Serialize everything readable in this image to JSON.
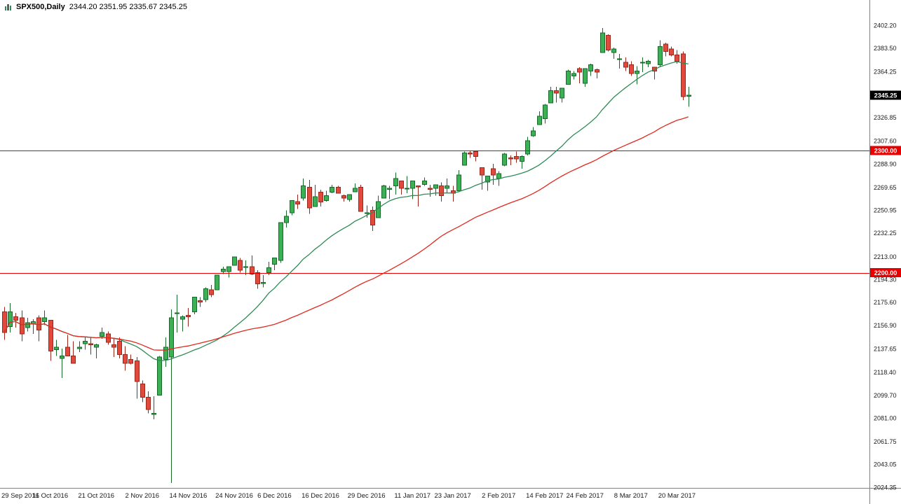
{
  "titlebar": {
    "symbol": "SPX500,Daily",
    "ohlc": "2344.20 2351.95 2335.67 2345.25"
  },
  "chart_data": {
    "type": "candlestick",
    "title": "SPX500,Daily",
    "symbol": "SPX500",
    "timeframe": "Daily",
    "current_bar": {
      "open": 2344.2,
      "high": 2351.95,
      "low": 2335.67,
      "close": 2345.25
    },
    "current_price_label": "2345.25",
    "ylim": [
      2024,
      2423
    ],
    "grid": "off",
    "legend": "none",
    "y_ticks": [
      "2402.20",
      "2383.50",
      "2364.25",
      "2326.85",
      "2307.60",
      "2288.90",
      "2269.65",
      "2250.95",
      "2232.25",
      "2213.00",
      "2194.30",
      "2175.60",
      "2156.90",
      "2137.65",
      "2118.40",
      "2099.70",
      "2081.00",
      "2061.75",
      "2043.05",
      "2024.35"
    ],
    "x_labels": [
      {
        "label": "29 Sep 2016",
        "index": 0
      },
      {
        "label": "11 Oct 2016",
        "index": 8
      },
      {
        "label": "21 Oct 2016",
        "index": 16
      },
      {
        "label": "2 Nov 2016",
        "index": 24
      },
      {
        "label": "14 Nov 2016",
        "index": 32
      },
      {
        "label": "24 Nov 2016",
        "index": 40
      },
      {
        "label": "6 Dec 2016",
        "index": 47
      },
      {
        "label": "16 Dec 2016",
        "index": 55
      },
      {
        "label": "29 Dec 2016",
        "index": 63
      },
      {
        "label": "11 Jan 2017",
        "index": 71
      },
      {
        "label": "23 Jan 2017",
        "index": 78
      },
      {
        "label": "2 Feb 2017",
        "index": 86
      },
      {
        "label": "14 Feb 2017",
        "index": 94
      },
      {
        "label": "24 Feb 2017",
        "index": 101
      },
      {
        "label": "8 Mar 2017",
        "index": 109
      },
      {
        "label": "20 Mar 2017",
        "index": 117
      }
    ],
    "horizontal_lines": [
      {
        "price": 2300.0,
        "label": "2300.00"
      },
      {
        "price": 2200.0,
        "label": "2200.00"
      }
    ],
    "moving_averages": [
      {
        "name": "ma-fast",
        "period": 20,
        "color": "#2e8b57"
      },
      {
        "name": "ma-slow",
        "period": 50,
        "color": "#e02b20"
      }
    ],
    "colors": {
      "background": "#ffffff",
      "bull": "#3cb054",
      "bull_border": "#156a28",
      "bear": "#e0493b",
      "bear_border": "#9c261a",
      "level": "#e80000",
      "current_tag_bg": "#000000",
      "axis_text": "#1a1a1a",
      "separator": "#808080"
    },
    "candles": [
      [
        2168,
        2172,
        2145,
        2151
      ],
      [
        2156,
        2175,
        2151,
        2168
      ],
      [
        2164,
        2167,
        2155,
        2161
      ],
      [
        2163,
        2169,
        2144,
        2150
      ],
      [
        2155,
        2163,
        2152,
        2159
      ],
      [
        2158,
        2162,
        2150,
        2160
      ],
      [
        2163,
        2165,
        2144,
        2153
      ],
      [
        2160,
        2169,
        2157,
        2163
      ],
      [
        2161,
        2161,
        2128,
        2136
      ],
      [
        2137,
        2145,
        2132,
        2139
      ],
      [
        2130,
        2138,
        2114,
        2132
      ],
      [
        2139,
        2149,
        2132,
        2132
      ],
      [
        2132,
        2144,
        2126,
        2126
      ],
      [
        2138,
        2144,
        2135,
        2139
      ],
      [
        2142,
        2148,
        2137,
        2144
      ],
      [
        2142,
        2147,
        2133,
        2141
      ],
      [
        2139,
        2142,
        2130,
        2141
      ],
      [
        2148,
        2155,
        2146,
        2151
      ],
      [
        2150,
        2152,
        2141,
        2143
      ],
      [
        2141,
        2146,
        2131,
        2139
      ],
      [
        2144,
        2147,
        2130,
        2133
      ],
      [
        2133,
        2140,
        2120,
        2126
      ],
      [
        2129,
        2133,
        2125,
        2126
      ],
      [
        2128,
        2131,
        2097,
        2111
      ],
      [
        2109,
        2112,
        2094,
        2098
      ],
      [
        2098,
        2103,
        2085,
        2088
      ],
      [
        2084,
        2099,
        2080,
        2085
      ],
      [
        2100,
        2132,
        2100,
        2131
      ],
      [
        2129,
        2147,
        2123,
        2139
      ],
      [
        2131,
        2170,
        2028,
        2163
      ],
      [
        2167,
        2182,
        2151,
        2167
      ],
      [
        2162,
        2165,
        2152,
        2164
      ],
      [
        2165,
        2171,
        2156,
        2164
      ],
      [
        2168,
        2180,
        2166,
        2180
      ],
      [
        2177,
        2180,
        2172,
        2176
      ],
      [
        2178,
        2188,
        2176,
        2187
      ],
      [
        2186,
        2190,
        2180,
        2182
      ],
      [
        2186,
        2198,
        2186,
        2198
      ],
      [
        2201,
        2205,
        2199,
        2203
      ],
      [
        2201,
        2205,
        2196,
        2205
      ],
      [
        2206,
        2213,
        2206,
        2213
      ],
      [
        2210,
        2212,
        2200,
        2202
      ],
      [
        2205,
        2210,
        2198,
        2205
      ],
      [
        2205,
        2214,
        2198,
        2199
      ],
      [
        2200,
        2202,
        2187,
        2191
      ],
      [
        2191,
        2198,
        2188,
        2192
      ],
      [
        2200,
        2209,
        2198,
        2204
      ],
      [
        2207,
        2212,
        2202,
        2212
      ],
      [
        2210,
        2241,
        2208,
        2241
      ],
      [
        2241,
        2251,
        2237,
        2246
      ],
      [
        2249,
        2259,
        2247,
        2259
      ],
      [
        2258,
        2264,
        2252,
        2256
      ],
      [
        2261,
        2277,
        2259,
        2271
      ],
      [
        2270,
        2276,
        2248,
        2253
      ],
      [
        2254,
        2272,
        2254,
        2262
      ],
      [
        2266,
        2268,
        2254,
        2258
      ],
      [
        2259,
        2267,
        2258,
        2263
      ],
      [
        2266,
        2272,
        2265,
        2270
      ],
      [
        2270,
        2271,
        2265,
        2265
      ],
      [
        2263,
        2264,
        2258,
        2261
      ],
      [
        2260,
        2264,
        2258,
        2264
      ],
      [
        2266,
        2273,
        2266,
        2269
      ],
      [
        2270,
        2272,
        2250,
        2250
      ],
      [
        2249,
        2255,
        2245,
        2249
      ],
      [
        2251,
        2254,
        2234,
        2239
      ],
      [
        2245,
        2263,
        2245,
        2258
      ],
      [
        2261,
        2272,
        2261,
        2271
      ],
      [
        2268,
        2271,
        2260,
        2269
      ],
      [
        2271,
        2282,
        2264,
        2277
      ],
      [
        2275,
        2275,
        2264,
        2269
      ],
      [
        2269,
        2279,
        2265,
        2269
      ],
      [
        2269,
        2275,
        2260,
        2275
      ],
      [
        2271,
        2271,
        2254,
        2270
      ],
      [
        2272,
        2278,
        2271,
        2275
      ],
      [
        2269,
        2272,
        2262,
        2268
      ],
      [
        2269,
        2272,
        2263,
        2272
      ],
      [
        2271,
        2274,
        2258,
        2263
      ],
      [
        2269,
        2277,
        2265,
        2271
      ],
      [
        2267,
        2271,
        2258,
        2265
      ],
      [
        2267,
        2284,
        2266,
        2280
      ],
      [
        2288,
        2299,
        2288,
        2298
      ],
      [
        2298,
        2300,
        2294,
        2297
      ],
      [
        2299,
        2299,
        2291,
        2295
      ],
      [
        2286,
        2286,
        2268,
        2280
      ],
      [
        2274,
        2279,
        2267,
        2279
      ],
      [
        2285,
        2289,
        2272,
        2280
      ],
      [
        2277,
        2283,
        2271,
        2281
      ],
      [
        2288,
        2298,
        2287,
        2297
      ],
      [
        2294,
        2296,
        2288,
        2293
      ],
      [
        2295,
        2299,
        2290,
        2293
      ],
      [
        2291,
        2296,
        2285,
        2295
      ],
      [
        2297,
        2311,
        2296,
        2308
      ],
      [
        2312,
        2319,
        2311,
        2316
      ],
      [
        2321,
        2332,
        2321,
        2328
      ],
      [
        2326,
        2338,
        2322,
        2337
      ],
      [
        2339,
        2352,
        2339,
        2349
      ],
      [
        2349,
        2352,
        2339,
        2347
      ],
      [
        2343,
        2351,
        2339,
        2351
      ],
      [
        2354,
        2366,
        2354,
        2365
      ],
      [
        2361,
        2365,
        2358,
        2363
      ],
      [
        2367,
        2368,
        2355,
        2364
      ],
      [
        2355,
        2367,
        2352,
        2367
      ],
      [
        2365,
        2371,
        2361,
        2370
      ],
      [
        2366,
        2367,
        2359,
        2364
      ],
      [
        2380,
        2400,
        2380,
        2396
      ],
      [
        2394,
        2395,
        2381,
        2382
      ],
      [
        2380,
        2384,
        2375,
        2383
      ],
      [
        2375,
        2379,
        2367,
        2375
      ],
      [
        2372,
        2376,
        2365,
        2368
      ],
      [
        2370,
        2373,
        2361,
        2363
      ],
      [
        2363,
        2369,
        2354,
        2365
      ],
      [
        2372,
        2376,
        2364,
        2372
      ],
      [
        2371,
        2374,
        2368,
        2373
      ],
      [
        2368,
        2368,
        2358,
        2365
      ],
      [
        2370,
        2390,
        2368,
        2385
      ],
      [
        2387,
        2388,
        2377,
        2381
      ],
      [
        2383,
        2385,
        2377,
        2378
      ],
      [
        2378,
        2382,
        2371,
        2373
      ],
      [
        2379,
        2381,
        2341,
        2344
      ],
      [
        2344.2,
        2351.95,
        2335.67,
        2345.25
      ]
    ]
  }
}
